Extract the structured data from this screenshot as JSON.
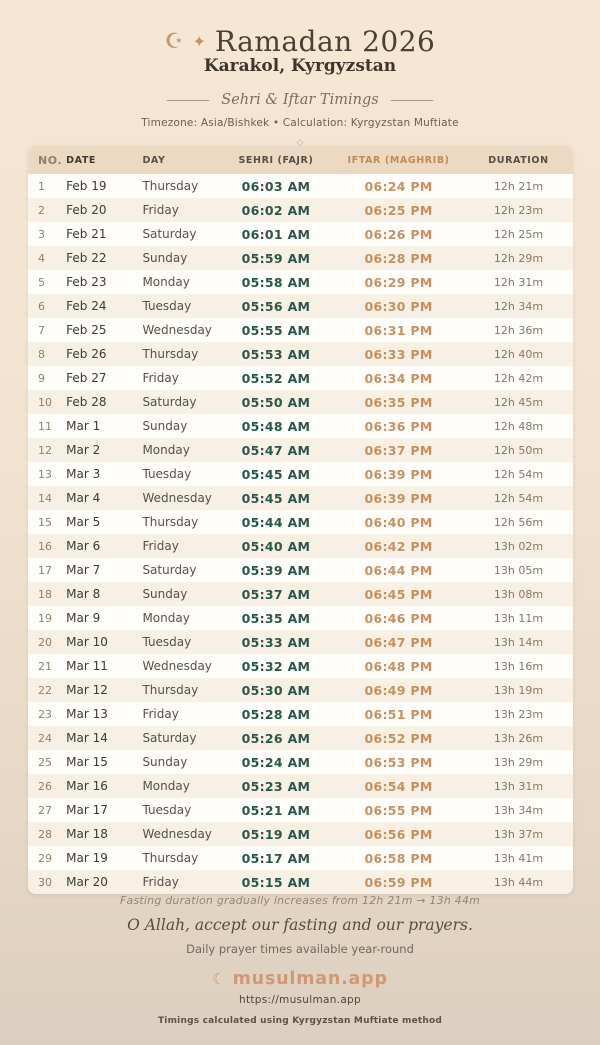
{
  "page": {
    "crescent_icon": "☪",
    "sparkle_icon": "✦",
    "title": "Ramadan 2026",
    "location": "Karakol, Kyrgyzstan",
    "section_title": "Sehri & Iftar Timings",
    "meta": "Timezone: Asia/Bishkek • Calculation: Kyrgyzstan Muftiate",
    "ornament": "◇"
  },
  "table": {
    "columns": [
      "NO.",
      "DATE",
      "DAY",
      "SEHRI (FAJR)",
      "IFTAR (MAGHRIB)",
      "DURATION"
    ],
    "rows": [
      {
        "no": "1",
        "date": "Feb 19",
        "day": "Thursday",
        "sehri": "06:03 AM",
        "iftar": "06:24 PM",
        "duration": "12h 21m"
      },
      {
        "no": "2",
        "date": "Feb 20",
        "day": "Friday",
        "sehri": "06:02 AM",
        "iftar": "06:25 PM",
        "duration": "12h 23m"
      },
      {
        "no": "3",
        "date": "Feb 21",
        "day": "Saturday",
        "sehri": "06:01 AM",
        "iftar": "06:26 PM",
        "duration": "12h 25m"
      },
      {
        "no": "4",
        "date": "Feb 22",
        "day": "Sunday",
        "sehri": "05:59 AM",
        "iftar": "06:28 PM",
        "duration": "12h 29m"
      },
      {
        "no": "5",
        "date": "Feb 23",
        "day": "Monday",
        "sehri": "05:58 AM",
        "iftar": "06:29 PM",
        "duration": "12h 31m"
      },
      {
        "no": "6",
        "date": "Feb 24",
        "day": "Tuesday",
        "sehri": "05:56 AM",
        "iftar": "06:30 PM",
        "duration": "12h 34m"
      },
      {
        "no": "7",
        "date": "Feb 25",
        "day": "Wednesday",
        "sehri": "05:55 AM",
        "iftar": "06:31 PM",
        "duration": "12h 36m"
      },
      {
        "no": "8",
        "date": "Feb 26",
        "day": "Thursday",
        "sehri": "05:53 AM",
        "iftar": "06:33 PM",
        "duration": "12h 40m"
      },
      {
        "no": "9",
        "date": "Feb 27",
        "day": "Friday",
        "sehri": "05:52 AM",
        "iftar": "06:34 PM",
        "duration": "12h 42m"
      },
      {
        "no": "10",
        "date": "Feb 28",
        "day": "Saturday",
        "sehri": "05:50 AM",
        "iftar": "06:35 PM",
        "duration": "12h 45m"
      },
      {
        "no": "11",
        "date": "Mar 1",
        "day": "Sunday",
        "sehri": "05:48 AM",
        "iftar": "06:36 PM",
        "duration": "12h 48m"
      },
      {
        "no": "12",
        "date": "Mar 2",
        "day": "Monday",
        "sehri": "05:47 AM",
        "iftar": "06:37 PM",
        "duration": "12h 50m"
      },
      {
        "no": "13",
        "date": "Mar 3",
        "day": "Tuesday",
        "sehri": "05:45 AM",
        "iftar": "06:39 PM",
        "duration": "12h 54m"
      },
      {
        "no": "14",
        "date": "Mar 4",
        "day": "Wednesday",
        "sehri": "05:45 AM",
        "iftar": "06:39 PM",
        "duration": "12h 54m"
      },
      {
        "no": "15",
        "date": "Mar 5",
        "day": "Thursday",
        "sehri": "05:44 AM",
        "iftar": "06:40 PM",
        "duration": "12h 56m"
      },
      {
        "no": "16",
        "date": "Mar 6",
        "day": "Friday",
        "sehri": "05:40 AM",
        "iftar": "06:42 PM",
        "duration": "13h 02m"
      },
      {
        "no": "17",
        "date": "Mar 7",
        "day": "Saturday",
        "sehri": "05:39 AM",
        "iftar": "06:44 PM",
        "duration": "13h 05m"
      },
      {
        "no": "18",
        "date": "Mar 8",
        "day": "Sunday",
        "sehri": "05:37 AM",
        "iftar": "06:45 PM",
        "duration": "13h 08m"
      },
      {
        "no": "19",
        "date": "Mar 9",
        "day": "Monday",
        "sehri": "05:35 AM",
        "iftar": "06:46 PM",
        "duration": "13h 11m"
      },
      {
        "no": "20",
        "date": "Mar 10",
        "day": "Tuesday",
        "sehri": "05:33 AM",
        "iftar": "06:47 PM",
        "duration": "13h 14m"
      },
      {
        "no": "21",
        "date": "Mar 11",
        "day": "Wednesday",
        "sehri": "05:32 AM",
        "iftar": "06:48 PM",
        "duration": "13h 16m"
      },
      {
        "no": "22",
        "date": "Mar 12",
        "day": "Thursday",
        "sehri": "05:30 AM",
        "iftar": "06:49 PM",
        "duration": "13h 19m"
      },
      {
        "no": "23",
        "date": "Mar 13",
        "day": "Friday",
        "sehri": "05:28 AM",
        "iftar": "06:51 PM",
        "duration": "13h 23m"
      },
      {
        "no": "24",
        "date": "Mar 14",
        "day": "Saturday",
        "sehri": "05:26 AM",
        "iftar": "06:52 PM",
        "duration": "13h 26m"
      },
      {
        "no": "25",
        "date": "Mar 15",
        "day": "Sunday",
        "sehri": "05:24 AM",
        "iftar": "06:53 PM",
        "duration": "13h 29m"
      },
      {
        "no": "26",
        "date": "Mar 16",
        "day": "Monday",
        "sehri": "05:23 AM",
        "iftar": "06:54 PM",
        "duration": "13h 31m"
      },
      {
        "no": "27",
        "date": "Mar 17",
        "day": "Tuesday",
        "sehri": "05:21 AM",
        "iftar": "06:55 PM",
        "duration": "13h 34m"
      },
      {
        "no": "28",
        "date": "Mar 18",
        "day": "Wednesday",
        "sehri": "05:19 AM",
        "iftar": "06:56 PM",
        "duration": "13h 37m"
      },
      {
        "no": "29",
        "date": "Mar 19",
        "day": "Thursday",
        "sehri": "05:17 AM",
        "iftar": "06:58 PM",
        "duration": "13h 41m"
      },
      {
        "no": "30",
        "date": "Mar 20",
        "day": "Friday",
        "sehri": "05:15 AM",
        "iftar": "06:59 PM",
        "duration": "13h 44m"
      }
    ]
  },
  "footer": {
    "fasting_note": "Fasting duration gradually increases from 12h 21m → 13h 44m",
    "dua": "O Allah, accept our fasting and our prayers.",
    "availability": "Daily prayer times available year-round",
    "brand_icon": "☾",
    "brand": "musulman.app",
    "url": "https://musulman.app",
    "method_note": "Timings calculated using Kyrgyzstan Muftiate method"
  },
  "colors": {
    "sehri_accent": "#29564d",
    "iftar_accent": "#c9905f",
    "brand_accent": "#cf9877",
    "header_bg": "#ecd9c1",
    "page_bg_top": "#f6e7d5",
    "page_bg_bottom": "#ddcfbf"
  }
}
